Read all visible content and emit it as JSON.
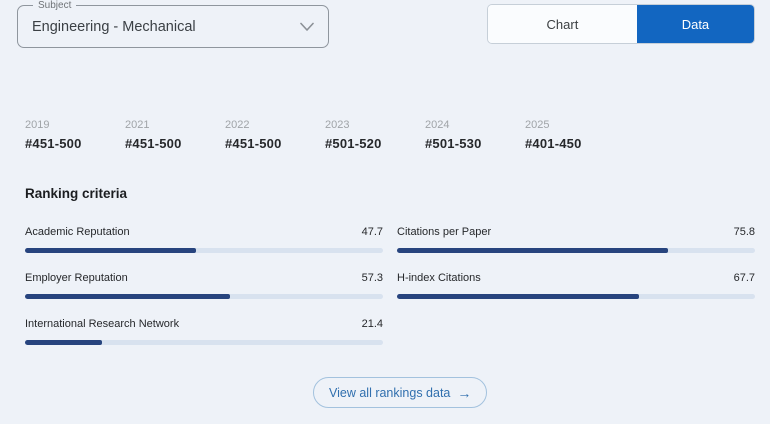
{
  "subject_select": {
    "label": "Subject",
    "value": "Engineering - Mechanical"
  },
  "view_toggle": {
    "chart": "Chart",
    "data": "Data",
    "active": "Data"
  },
  "years": [
    {
      "year": "2019",
      "rank": "#451-500"
    },
    {
      "year": "2021",
      "rank": "#451-500"
    },
    {
      "year": "2022",
      "rank": "#451-500"
    },
    {
      "year": "2023",
      "rank": "#501-520"
    },
    {
      "year": "2024",
      "rank": "#501-530"
    },
    {
      "year": "2025",
      "rank": "#401-450"
    }
  ],
  "ranking_criteria": {
    "heading": "Ranking criteria",
    "left": [
      {
        "label": "Academic Reputation",
        "value": "47.7",
        "pct": 47.7
      },
      {
        "label": "Employer Reputation",
        "value": "57.3",
        "pct": 57.3
      },
      {
        "label": "International Research Network",
        "value": "21.4",
        "pct": 21.4
      }
    ],
    "right": [
      {
        "label": "Citations per Paper",
        "value": "75.8",
        "pct": 75.8
      },
      {
        "label": "H-index Citations",
        "value": "67.7",
        "pct": 67.7
      }
    ]
  },
  "footer_button": {
    "label": "View all rankings data",
    "arrow": "→"
  },
  "colors": {
    "background": "#eef2f8",
    "accent_blue": "#1266c1",
    "bar_fill": "#27447e",
    "bar_track": "#d8e2ef",
    "link_blue": "#306fae"
  }
}
